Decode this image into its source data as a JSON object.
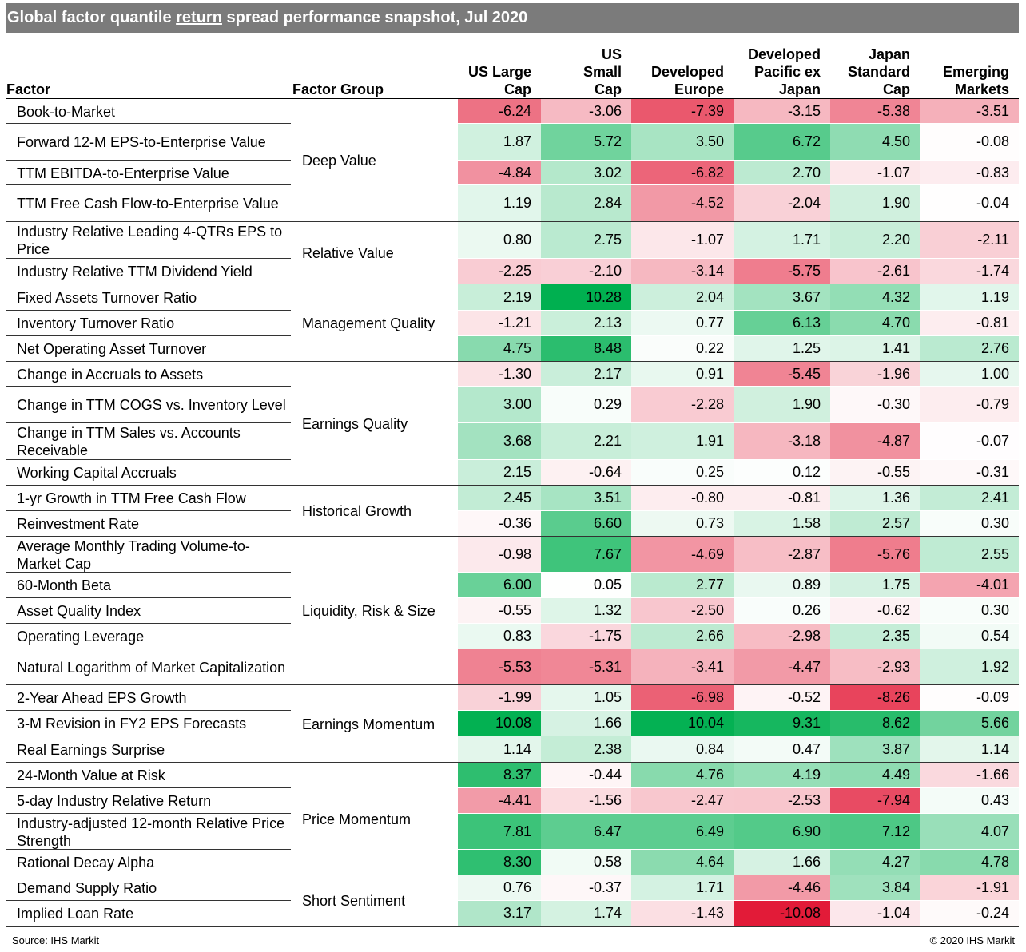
{
  "title_pre": "Global factor quantile ",
  "title_mid": "return",
  "title_post": " spread performance snapshot, Jul 2020",
  "headers": {
    "factor": "Factor",
    "group": "Factor Group",
    "cols": [
      [
        "US Large",
        "Cap"
      ],
      [
        "US",
        "Small",
        "Cap"
      ],
      [
        "Developed",
        "Europe"
      ],
      [
        "Developed",
        "Pacific ex",
        "Japan"
      ],
      [
        "Japan",
        "Standard",
        "Cap"
      ],
      [
        "Emerging",
        "Markets"
      ]
    ]
  },
  "groups": [
    {
      "label": "Deep Value"
    },
    {
      "label": "Relative Value"
    },
    {
      "label": "Management Quality"
    },
    {
      "label": "Earnings Quality"
    },
    {
      "label": "Historical Growth"
    },
    {
      "label": "Liquidity, Risk & Size"
    },
    {
      "label": "Earnings Momentum"
    },
    {
      "label": "Price Momentum"
    },
    {
      "label": "Short Sentiment"
    }
  ],
  "rows": [
    {
      "factor": "Book-to-Market",
      "values": [
        "-6.24",
        "-3.06",
        "-7.39",
        "-3.15",
        "-5.38",
        "-3.51"
      ]
    },
    {
      "factor": "Forward 12-M EPS-to-Enterprise Value",
      "values": [
        "1.87",
        "5.72",
        "3.50",
        "6.72",
        "4.50",
        "-0.08"
      ]
    },
    {
      "factor": "TTM EBITDA-to-Enterprise Value",
      "values": [
        "-4.84",
        "3.02",
        "-6.82",
        "2.70",
        "-1.07",
        "-0.83"
      ]
    },
    {
      "factor": "TTM Free Cash Flow-to-Enterprise Value",
      "values": [
        "1.19",
        "2.84",
        "-4.52",
        "-2.04",
        "1.90",
        "-0.04"
      ]
    },
    {
      "factor": "Industry Relative Leading 4-QTRs EPS to Price",
      "values": [
        "0.80",
        "2.75",
        "-1.07",
        "1.71",
        "2.20",
        "-2.11"
      ]
    },
    {
      "factor": "Industry Relative TTM Dividend Yield",
      "values": [
        "-2.25",
        "-2.10",
        "-3.14",
        "-5.75",
        "-2.61",
        "-1.74"
      ]
    },
    {
      "factor": "Fixed Assets Turnover Ratio",
      "values": [
        "2.19",
        "10.28",
        "2.04",
        "3.67",
        "4.32",
        "1.19"
      ]
    },
    {
      "factor": "Inventory Turnover Ratio",
      "values": [
        "-1.21",
        "2.13",
        "0.77",
        "6.13",
        "4.70",
        "-0.81"
      ]
    },
    {
      "factor": "Net Operating Asset Turnover",
      "values": [
        "4.75",
        "8.48",
        "0.22",
        "1.25",
        "1.41",
        "2.76"
      ]
    },
    {
      "factor": "Change in Accruals to Assets",
      "values": [
        "-1.30",
        "2.17",
        "0.91",
        "-5.45",
        "-1.96",
        "1.00"
      ]
    },
    {
      "factor": "Change in TTM COGS vs. Inventory Level",
      "values": [
        "3.00",
        "0.29",
        "-2.28",
        "1.90",
        "-0.30",
        "-0.79"
      ]
    },
    {
      "factor": "Change in TTM Sales vs. Accounts Receivable",
      "values": [
        "3.68",
        "2.21",
        "1.91",
        "-3.18",
        "-4.87",
        "-0.07"
      ]
    },
    {
      "factor": "Working Capital Accruals",
      "values": [
        "2.15",
        "-0.64",
        "0.25",
        "0.12",
        "-0.55",
        "-0.31"
      ]
    },
    {
      "factor": "1-yr Growth in TTM Free Cash Flow",
      "values": [
        "2.45",
        "3.51",
        "-0.80",
        "-0.81",
        "1.36",
        "2.41"
      ]
    },
    {
      "factor": "Reinvestment Rate",
      "values": [
        "-0.36",
        "6.60",
        "0.73",
        "1.58",
        "2.57",
        "0.30"
      ]
    },
    {
      "factor": "Average Monthly Trading Volume-to-Market Cap",
      "values": [
        "-0.98",
        "7.67",
        "-4.69",
        "-2.87",
        "-5.76",
        "2.55"
      ]
    },
    {
      "factor": "60-Month Beta",
      "values": [
        "6.00",
        "0.05",
        "2.77",
        "0.89",
        "1.75",
        "-4.01"
      ]
    },
    {
      "factor": "Asset Quality Index",
      "values": [
        "-0.55",
        "1.32",
        "-2.50",
        "0.26",
        "-0.62",
        "0.30"
      ]
    },
    {
      "factor": "Operating Leverage",
      "values": [
        "0.83",
        "-1.75",
        "2.66",
        "-2.98",
        "2.35",
        "0.54"
      ]
    },
    {
      "factor": "Natural Logarithm of Market Capitalization",
      "values": [
        "-5.53",
        "-5.31",
        "-3.41",
        "-4.47",
        "-2.93",
        "1.92"
      ]
    },
    {
      "factor": "2-Year Ahead EPS Growth",
      "values": [
        "-1.99",
        "1.05",
        "-6.98",
        "-0.52",
        "-8.26",
        "-0.09"
      ]
    },
    {
      "factor": "3-M Revision in FY2 EPS Forecasts",
      "values": [
        "10.08",
        "1.66",
        "10.04",
        "9.31",
        "8.62",
        "5.66"
      ]
    },
    {
      "factor": "Real Earnings Surprise",
      "values": [
        "1.14",
        "2.38",
        "0.84",
        "0.47",
        "3.87",
        "1.14"
      ]
    },
    {
      "factor": "24-Month Value at Risk",
      "values": [
        "8.37",
        "-0.44",
        "4.76",
        "4.19",
        "4.49",
        "-1.66"
      ]
    },
    {
      "factor": "5-day Industry Relative Return",
      "values": [
        "-4.41",
        "-1.56",
        "-2.47",
        "-2.53",
        "-7.94",
        "0.43"
      ]
    },
    {
      "factor": "Industry-adjusted 12-month Relative Price Strength",
      "values": [
        "7.81",
        "6.47",
        "6.49",
        "6.90",
        "7.12",
        "4.07"
      ]
    },
    {
      "factor": "Rational Decay Alpha",
      "values": [
        "8.30",
        "0.58",
        "4.64",
        "1.66",
        "4.27",
        "4.78"
      ]
    },
    {
      "factor": "Demand Supply Ratio",
      "values": [
        "0.76",
        "-0.37",
        "1.71",
        "-4.46",
        "3.84",
        "-1.91"
      ]
    },
    {
      "factor": "Implied Loan Rate",
      "values": [
        "3.17",
        "1.74",
        "-1.43",
        "-10.08",
        "-1.04",
        "-0.24"
      ]
    }
  ],
  "footer": {
    "source": "Source: IHS Markit",
    "copyright": "© 2020 IHS Markit"
  }
}
